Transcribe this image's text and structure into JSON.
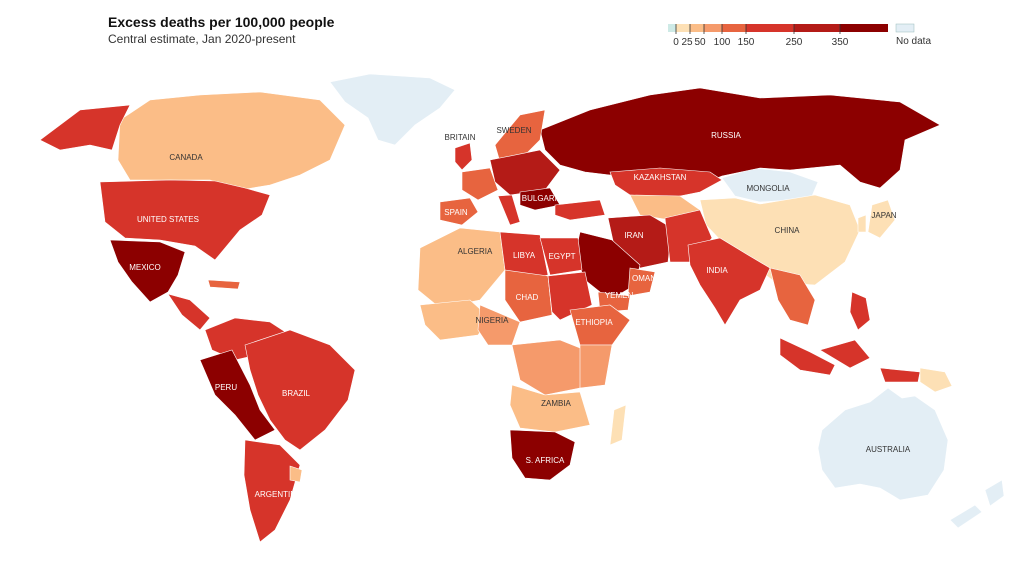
{
  "title": "Excess deaths per 100,000 people",
  "subtitle": "Central estimate, Jan 2020-present",
  "legend": {
    "ticks": [
      "0",
      "25",
      "50",
      "100",
      "150",
      "250",
      "350"
    ],
    "no_data": "No data",
    "colors": [
      "#ceeae6",
      "#fde0b5",
      "#fbbd87",
      "#f59a6b",
      "#e7643f",
      "#d6342a",
      "#b41b17",
      "#8c0000"
    ],
    "no_data_color": "#e3eef5"
  },
  "labels": {
    "russia": "RUSSIA",
    "canada": "CANADA",
    "united_states": "UNITED STATES",
    "mexico": "MEXICO",
    "peru": "PERU",
    "brazil": "BRAZIL",
    "argentina": "ARGENTINA",
    "britain": "BRITAIN",
    "sweden": "SWEDEN",
    "spain": "SPAIN",
    "bulgaria": "BULGARIA",
    "kazakhstan": "KAZAKHSTAN",
    "mongolia": "MONGOLIA",
    "china": "CHINA",
    "japan": "JAPAN",
    "iran": "IRAN",
    "india": "INDIA",
    "algeria": "ALGERIA",
    "libya": "LIBYA",
    "egypt": "EGYPT",
    "oman": "OMAN",
    "yemen": "YEMEN",
    "chad": "CHAD",
    "nigeria": "NIGERIA",
    "ethiopia": "ETHIOPIA",
    "zambia": "ZAMBIA",
    "s_africa": "S. AFRICA",
    "australia": "AUSTRALIA"
  }
}
